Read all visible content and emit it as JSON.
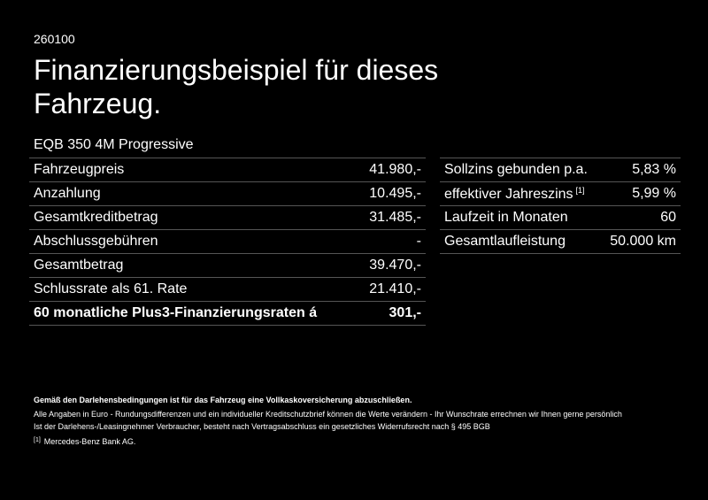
{
  "code": "260100",
  "title": "Finanzierungsbeispiel für dieses Fahrzeug.",
  "model": "EQB 350 4M Progressive",
  "left_rows": [
    {
      "label": "Fahrzeugpreis",
      "value": "41.980,-"
    },
    {
      "label": "Anzahlung",
      "value": "10.495,-"
    },
    {
      "label": "Gesamtkreditbetrag",
      "value": "31.485,-"
    },
    {
      "label": "Abschlussgebühren",
      "value": "-"
    },
    {
      "label": "Gesamtbetrag",
      "value": "39.470,-"
    },
    {
      "label": "Schlussrate als 61. Rate",
      "value": "21.410,-"
    },
    {
      "label": "60 monatliche Plus3-Finanzierungsraten á",
      "value": "301,-"
    }
  ],
  "right_rows": [
    {
      "label": "Sollzins gebunden p.a.",
      "value": "5,83 %"
    },
    {
      "label": "effektiver Jahreszins",
      "note": "[1]",
      "value": "5,99 %"
    },
    {
      "label": "Laufzeit in Monaten",
      "value": "60"
    },
    {
      "label": "Gesamtlaufleistung",
      "value": "50.000 km"
    }
  ],
  "footer": {
    "bold_line": "Gemäß den Darlehensbedingungen ist für das Fahrzeug eine Vollkaskoversicherung abzuschließen.",
    "line1": "Alle Angaben in Euro - Rundungsdifferenzen und ein individueller Kreditschutzbrief können die Werte verändern - Ihr Wunschrate errechnen wir Ihnen gerne persönlich",
    "line2": "Ist der Darlehens-/Leasingnehmer Verbraucher, besteht nach Vertragsabschluss ein gesetzliches Widerrufsrecht nach § 495 BGB",
    "note_marker": "[1]",
    "note_text": "Mercedes-Benz Bank AG."
  }
}
